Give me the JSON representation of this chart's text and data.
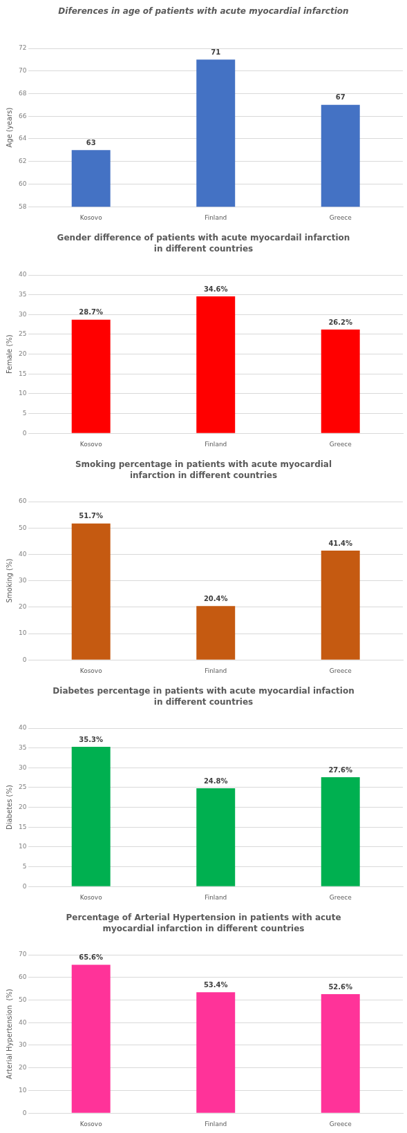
{
  "chart_data": [
    {
      "type": "bar",
      "title": "Diferences in age of patients with acute myocardial infarction",
      "ylabel": "Age (years)",
      "categories": [
        "Kosovo",
        "Finland",
        "Greece"
      ],
      "values": [
        63,
        71,
        67
      ],
      "color": "#4472c4",
      "ylim": [
        58,
        72
      ],
      "yticks": [
        58,
        60,
        62,
        64,
        66,
        68,
        70,
        72
      ],
      "grid": "y",
      "data_labels": true
    },
    {
      "type": "bar",
      "title": "Gender difference of patients with acute myocardail infarction in different countries",
      "ylabel": "Female (%)",
      "categories": [
        "Kosovo",
        "Finland",
        "Greece"
      ],
      "values": [
        28.7,
        34.6,
        26.2
      ],
      "value_labels": [
        "28.7%",
        "34.6%",
        "26.2%"
      ],
      "color": "#ff0000",
      "ylim": [
        0,
        40
      ],
      "yticks": [
        0,
        5,
        10,
        15,
        20,
        25,
        30,
        35,
        40
      ],
      "grid": "y"
    },
    {
      "type": "bar",
      "title": "Smoking  percentage in patients with acute myocardial infarction in different countries",
      "ylabel": "Smoking (%)",
      "categories": [
        "Kosovo",
        "Finland",
        "Greece"
      ],
      "values": [
        51.7,
        20.4,
        41.4
      ],
      "value_labels": [
        "51.7%",
        "20.4%",
        "41.4%"
      ],
      "color": "#c55a11",
      "ylim": [
        0,
        60
      ],
      "yticks": [
        0,
        10,
        20,
        30,
        40,
        50,
        60
      ],
      "grid": "y"
    },
    {
      "type": "bar",
      "title": "Diabetes percentage in patients with acute myocardial infaction in different countries",
      "ylabel": "Diabetes (%)",
      "categories": [
        "Kosovo",
        "Finland",
        "Greece"
      ],
      "values": [
        35.3,
        24.8,
        27.6
      ],
      "value_labels": [
        "35.3%",
        "24.8%",
        "27.6%"
      ],
      "color": "#00b050",
      "ylim": [
        0,
        40
      ],
      "yticks": [
        0,
        5,
        10,
        15,
        20,
        25,
        30,
        35,
        40
      ],
      "grid": "y"
    },
    {
      "type": "bar",
      "title": "Percentage of Arterial Hypertension in patients with acute myocardial infarction in different countries",
      "ylabel": "Arterial Hypertension  (%)",
      "categories": [
        "Kosovo",
        "Finland",
        "Greece"
      ],
      "values": [
        65.6,
        53.4,
        52.6
      ],
      "value_labels": [
        "65.6%",
        "53.4%",
        "52.6%"
      ],
      "color": "#ff3399",
      "ylim": [
        0,
        70
      ],
      "yticks": [
        0,
        10,
        20,
        30,
        40,
        50,
        60,
        70
      ],
      "grid": "y"
    }
  ]
}
